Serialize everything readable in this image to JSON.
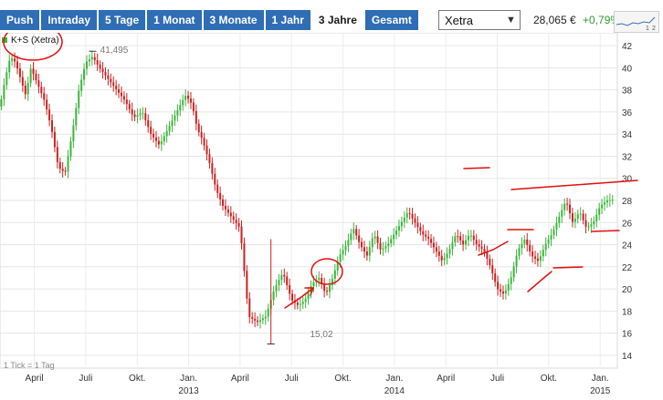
{
  "toolbar": {
    "tabs": [
      "Push",
      "Intraday",
      "5 Tage",
      "1 Monat",
      "3 Monate",
      "1 Jahr",
      "3 Jahre",
      "Gesamt"
    ],
    "active_tab": "3 Jahre",
    "exchange": "Xetra",
    "price": "28,065 €",
    "change": "+0,79%"
  },
  "mini_chart": {
    "labels": [
      "1",
      "2"
    ]
  },
  "chart_data": {
    "type": "candlestick",
    "title": "K+S (Xetra)",
    "ylim": [
      13,
      43
    ],
    "y_ticks": [
      "14",
      "16",
      "18",
      "20",
      "22",
      "24",
      "26",
      "28",
      "30",
      "32",
      "34",
      "36",
      "38",
      "40",
      "42"
    ],
    "x_ticks": [
      "April",
      "Juli",
      "Okt.",
      "Jan.",
      "April",
      "Juli",
      "Okt.",
      "Jan.",
      "April",
      "Juli",
      "Okt.",
      "Jan."
    ],
    "year_labels": [
      "2013",
      "2014",
      "2015"
    ],
    "max_label": "41,495",
    "min_label": "15,02",
    "footnote": "1 Tick = 1 Tag",
    "grid": true,
    "up_color": "#3db53d",
    "down_color": "#cc2222",
    "series": [
      {
        "name": "K+S (Xetra)",
        "x": [
          0.0,
          0.3,
          0.6,
          0.9,
          1.2,
          1.5,
          1.8,
          2.2,
          2.6,
          3.0,
          3.4,
          3.8,
          4.2,
          4.6,
          5.0,
          5.4,
          5.8,
          6.3,
          6.8,
          7.3,
          7.8,
          8.3,
          8.8,
          9.3,
          9.8,
          10.3,
          10.8,
          11.1,
          11.3,
          11.5,
          11.8,
          12.2,
          12.6,
          13.0,
          13.5,
          14.0,
          14.5,
          15.0,
          15.5,
          16.0,
          16.5,
          17.0,
          17.4,
          17.8,
          18.2,
          18.6,
          19.0,
          19.4,
          19.8,
          20.2,
          20.6,
          21.0,
          21.4,
          21.8,
          22.2,
          22.6,
          23.0,
          23.4,
          23.8,
          24.2,
          24.6,
          25.0,
          25.4,
          25.8,
          26.2,
          26.6,
          27.0,
          27.4,
          27.8,
          28.2,
          28.6,
          29.0,
          29.4,
          29.8,
          30.2,
          30.6,
          31.0,
          31.4,
          31.8,
          32.2,
          32.6,
          33.0,
          33.4,
          33.8,
          34.2,
          34.6,
          35.0,
          35.4,
          35.8
        ],
        "y": [
          36.5,
          39.0,
          41.0,
          40.5,
          39.0,
          37.5,
          40.0,
          38.5,
          37.0,
          34.5,
          31.0,
          30.5,
          34.0,
          38.0,
          40.5,
          41.0,
          40.0,
          39.0,
          38.0,
          37.0,
          35.5,
          36.0,
          34.0,
          33.0,
          34.5,
          36.0,
          37.5,
          37.0,
          36.0,
          34.5,
          33.5,
          31.5,
          29.0,
          27.5,
          26.5,
          25.5,
          17.5,
          17.0,
          17.5,
          20.0,
          21.5,
          19.0,
          18.5,
          19.0,
          20.5,
          21.0,
          19.5,
          21.0,
          23.0,
          24.0,
          25.5,
          24.0,
          23.0,
          25.0,
          23.5,
          24.0,
          25.0,
          26.0,
          27.0,
          26.0,
          25.0,
          24.5,
          23.5,
          22.5,
          23.5,
          25.0,
          24.0,
          25.0,
          24.0,
          23.5,
          22.0,
          20.0,
          19.5,
          21.0,
          23.5,
          24.5,
          23.0,
          22.5,
          24.0,
          25.0,
          26.5,
          28.0,
          26.0,
          27.0,
          25.5,
          26.0,
          27.5,
          28.0,
          28.1
        ],
        "x_unit": "months from 2012-02"
      }
    ]
  }
}
